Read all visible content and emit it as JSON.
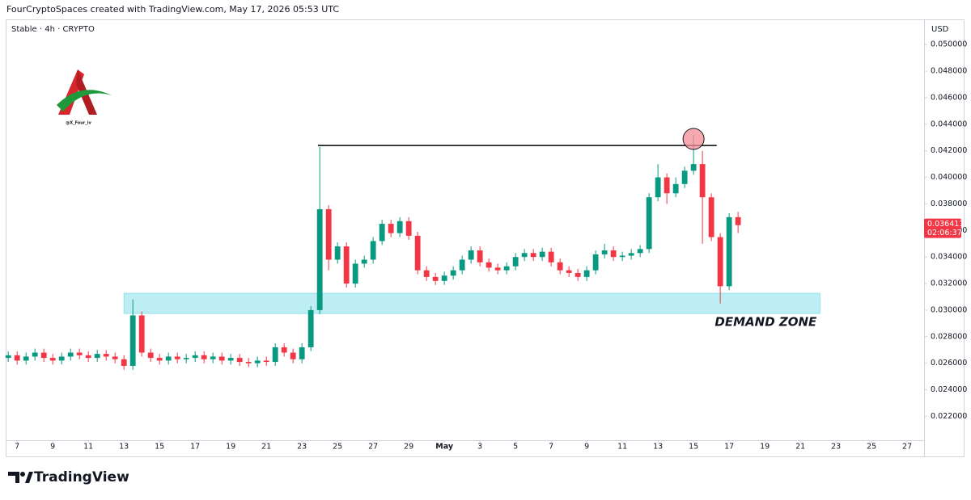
{
  "chart_data": {
    "type": "candlestick",
    "header": "FourCryptoSpaces created with TradingView.com, May 17, 2026 05:53 UTC",
    "title": "Stable · 4h · CRYPTO",
    "currency": "USD",
    "logo_handle": "@X_Four_iv",
    "brand": "TradingView",
    "up_color": "#089981",
    "down_color": "#f23645",
    "grid": false,
    "x": [
      6.5,
      7,
      7.5,
      8,
      8.5,
      9,
      9.5,
      10,
      10.5,
      11,
      11.5,
      12,
      12.5,
      13,
      13.5,
      14,
      14.5,
      15,
      15.5,
      16,
      16.5,
      17,
      17.5,
      18,
      18.5,
      19,
      19.5,
      20,
      20.5,
      21,
      21.5,
      22,
      22.5,
      23,
      23.5,
      24,
      24.5,
      25,
      25.5,
      26,
      26.5,
      27,
      27.5,
      28,
      28.5,
      29,
      29.5,
      30,
      30.5,
      31,
      31.5,
      32,
      32.5,
      33,
      33.5,
      34,
      34.5,
      35,
      35.5,
      36,
      36.5,
      37,
      37.5,
      38,
      38.5,
      39,
      39.5,
      40,
      40.5,
      41,
      41.5,
      42,
      42.5,
      43,
      43.5,
      44,
      44.5,
      45,
      45.5,
      46,
      46.5,
      47,
      47.5
    ],
    "open": [
      0.0264,
      0.0266,
      0.0262,
      0.0265,
      0.0268,
      0.0264,
      0.0262,
      0.0265,
      0.0268,
      0.0266,
      0.0264,
      0.0267,
      0.0265,
      0.0263,
      0.0258,
      0.0296,
      0.0268,
      0.0264,
      0.0262,
      0.0265,
      0.0263,
      0.0264,
      0.0266,
      0.0263,
      0.0265,
      0.0262,
      0.0264,
      0.0261,
      0.026,
      0.0262,
      0.0261,
      0.0272,
      0.0268,
      0.0263,
      0.0272,
      0.03,
      0.0376,
      0.0338,
      0.0348,
      0.032,
      0.0335,
      0.0338,
      0.0352,
      0.0365,
      0.0358,
      0.0367,
      0.0356,
      0.033,
      0.0325,
      0.0322,
      0.0326,
      0.033,
      0.0338,
      0.0345,
      0.0336,
      0.0332,
      0.033,
      0.0333,
      0.034,
      0.0343,
      0.034,
      0.0344,
      0.0336,
      0.033,
      0.0328,
      0.0325,
      0.033,
      0.0342,
      0.0345,
      0.034,
      0.0341,
      0.0343,
      0.0346,
      0.0385,
      0.04,
      0.0388,
      0.0395,
      0.0405,
      0.041,
      0.0385,
      0.0355,
      0.0318,
      0.037
    ],
    "high": [
      0.0269,
      0.0269,
      0.0268,
      0.0271,
      0.0271,
      0.0267,
      0.0268,
      0.0271,
      0.0271,
      0.0269,
      0.027,
      0.027,
      0.0268,
      0.0266,
      0.0308,
      0.0299,
      0.0271,
      0.0267,
      0.0268,
      0.0268,
      0.0267,
      0.0269,
      0.0269,
      0.0268,
      0.0268,
      0.0267,
      0.0267,
      0.0264,
      0.0265,
      0.0265,
      0.0275,
      0.0275,
      0.0271,
      0.0275,
      0.0303,
      0.0423,
      0.0379,
      0.0351,
      0.0351,
      0.0338,
      0.0341,
      0.0355,
      0.0368,
      0.0368,
      0.037,
      0.037,
      0.0359,
      0.0333,
      0.0328,
      0.0329,
      0.0333,
      0.0341,
      0.0348,
      0.0348,
      0.0339,
      0.0335,
      0.0336,
      0.0343,
      0.0346,
      0.0346,
      0.0347,
      0.0347,
      0.0339,
      0.0333,
      0.0331,
      0.0333,
      0.0345,
      0.035,
      0.0348,
      0.0344,
      0.0346,
      0.0349,
      0.0388,
      0.041,
      0.0403,
      0.04,
      0.0408,
      0.0432,
      0.042,
      0.0388,
      0.0358,
      0.0373,
      0.0374
    ],
    "low": [
      0.0261,
      0.0259,
      0.0259,
      0.0262,
      0.0261,
      0.0259,
      0.0259,
      0.0262,
      0.0263,
      0.0261,
      0.0261,
      0.0262,
      0.026,
      0.0255,
      0.0255,
      0.0265,
      0.0261,
      0.0259,
      0.0259,
      0.026,
      0.026,
      0.0261,
      0.026,
      0.026,
      0.0259,
      0.0259,
      0.0258,
      0.0257,
      0.0257,
      0.0258,
      0.0258,
      0.0265,
      0.026,
      0.026,
      0.0269,
      0.0297,
      0.033,
      0.0335,
      0.0317,
      0.0317,
      0.0332,
      0.0335,
      0.0349,
      0.0355,
      0.0355,
      0.0353,
      0.0327,
      0.0322,
      0.0319,
      0.0319,
      0.0323,
      0.0327,
      0.0335,
      0.0333,
      0.0329,
      0.0327,
      0.0327,
      0.033,
      0.0337,
      0.0337,
      0.0337,
      0.0333,
      0.0327,
      0.0325,
      0.0322,
      0.0322,
      0.0327,
      0.0339,
      0.0337,
      0.0337,
      0.0338,
      0.034,
      0.0343,
      0.0382,
      0.038,
      0.0385,
      0.0392,
      0.0402,
      0.035,
      0.0352,
      0.0305,
      0.0315,
      0.0358
    ],
    "close": [
      0.0266,
      0.0262,
      0.0265,
      0.0268,
      0.0264,
      0.0262,
      0.0265,
      0.0268,
      0.0266,
      0.0264,
      0.0267,
      0.0265,
      0.0263,
      0.0258,
      0.0296,
      0.0268,
      0.0264,
      0.0262,
      0.0265,
      0.0263,
      0.0264,
      0.0266,
      0.0263,
      0.0265,
      0.0262,
      0.0264,
      0.0261,
      0.026,
      0.0262,
      0.0261,
      0.0272,
      0.0268,
      0.0263,
      0.0272,
      0.03,
      0.0376,
      0.0338,
      0.0348,
      0.032,
      0.0335,
      0.0338,
      0.0352,
      0.0365,
      0.0358,
      0.0367,
      0.0356,
      0.033,
      0.0325,
      0.0322,
      0.0326,
      0.033,
      0.0338,
      0.0345,
      0.0336,
      0.0332,
      0.033,
      0.0333,
      0.034,
      0.0343,
      0.034,
      0.0344,
      0.0336,
      0.033,
      0.0328,
      0.0325,
      0.033,
      0.0342,
      0.0345,
      0.034,
      0.0341,
      0.0343,
      0.0346,
      0.0385,
      0.04,
      0.0388,
      0.0395,
      0.0405,
      0.041,
      0.0385,
      0.0355,
      0.0318,
      0.037,
      0.0364
    ],
    "xlim": [
      6.4,
      57.95
    ],
    "ylim": [
      0.0202,
      0.0519
    ],
    "xticks": [
      7,
      9,
      11,
      13,
      15,
      17,
      19,
      21,
      23,
      25,
      27,
      29,
      {
        "value": 31,
        "label": "May"
      },
      {
        "value": 33,
        "label": "3"
      },
      {
        "value": 35,
        "label": "5"
      },
      {
        "value": 37,
        "label": "7"
      },
      {
        "value": 39,
        "label": "9"
      },
      {
        "value": 41,
        "label": "11"
      },
      {
        "value": 43,
        "label": "13"
      },
      {
        "value": 45,
        "label": "15"
      },
      {
        "value": 47,
        "label": "17"
      },
      {
        "value": 49,
        "label": "19"
      },
      {
        "value": 51,
        "label": "21"
      },
      {
        "value": 53,
        "label": "23"
      },
      {
        "value": 55,
        "label": "25"
      },
      {
        "value": 57,
        "label": "27"
      }
    ],
    "yticks": [
      {
        "value": 0.022,
        "label": "0.022000"
      },
      {
        "value": 0.024,
        "label": "0.024000"
      },
      {
        "value": 0.026,
        "label": "0.026000"
      },
      {
        "value": 0.028,
        "label": "0.028000"
      },
      {
        "value": 0.03,
        "label": "0.030000"
      },
      {
        "value": 0.032,
        "label": "0.032000"
      },
      {
        "value": 0.034,
        "label": "0.034000"
      },
      {
        "value": 0.036,
        "label": "0.036000"
      },
      {
        "value": 0.038,
        "label": "0.038000"
      },
      {
        "value": 0.04,
        "label": "0.040000"
      },
      {
        "value": 0.042,
        "label": "0.042000"
      },
      {
        "value": 0.044,
        "label": "0.044000"
      },
      {
        "value": 0.046,
        "label": "0.046000"
      },
      {
        "value": 0.048,
        "label": "0.048000"
      },
      {
        "value": 0.05,
        "label": "0.050000"
      }
    ],
    "last_price": {
      "value": 0.036411,
      "label": "0.036411",
      "countdown": "02:06:37",
      "color": "#f23645"
    },
    "resistance": {
      "value": 0.0424,
      "x": [
        23.9,
        46.3
      ],
      "color": "#000000"
    },
    "demand_zone": {
      "label": "DEMAND ZONE",
      "range": [
        0.02975,
        0.03127
      ],
      "x": [
        13.0,
        52.1
      ],
      "color": "#b2ebf2"
    }
  }
}
